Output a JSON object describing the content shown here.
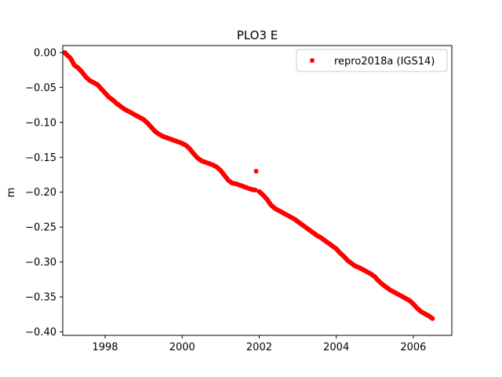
{
  "chart_data": {
    "type": "scatter",
    "title": "PLO3 E",
    "xlabel": "",
    "ylabel": "m",
    "xlim": [
      1996.9,
      2007.0
    ],
    "ylim": [
      -0.405,
      0.01
    ],
    "x_ticks": [
      1998,
      2000,
      2002,
      2004,
      2006
    ],
    "x_tick_labels": [
      "1998",
      "2000",
      "2002",
      "2004",
      "2006"
    ],
    "y_ticks": [
      0.0,
      -0.05,
      -0.1,
      -0.15,
      -0.2,
      -0.25,
      -0.3,
      -0.35,
      -0.4
    ],
    "y_tick_labels": [
      "0.00",
      "−0.05",
      "−0.10",
      "−0.15",
      "−0.20",
      "−0.25",
      "−0.30",
      "−0.35",
      "−0.40"
    ],
    "grid": false,
    "legend_position": "top-right",
    "series": [
      {
        "name": "repro2018a (IGS14)",
        "color": "#ff0000",
        "marker": "dot",
        "x": [
          1996.95,
          1997.0,
          1997.1,
          1997.2,
          1997.3,
          1997.4,
          1997.5,
          1997.6,
          1997.7,
          1997.8,
          1997.9,
          1998.0,
          1998.1,
          1998.2,
          1998.3,
          1998.4,
          1998.5,
          1998.6,
          1998.7,
          1998.8,
          1998.9,
          1999.0,
          1999.1,
          1999.2,
          1999.3,
          1999.4,
          1999.5,
          1999.6,
          1999.7,
          1999.8,
          1999.9,
          2000.0,
          2000.1,
          2000.2,
          2000.3,
          2000.4,
          2000.5,
          2000.6,
          2000.7,
          2000.8,
          2000.9,
          2001.0,
          2001.1,
          2001.2,
          2001.3,
          2001.4,
          2001.5,
          2001.6,
          2001.7,
          2001.8,
          2001.9,
          2001.92,
          2002.0,
          2002.1,
          2002.2,
          2002.3,
          2002.4,
          2002.5,
          2002.6,
          2002.7,
          2002.8,
          2002.9,
          2003.0,
          2003.1,
          2003.2,
          2003.3,
          2003.4,
          2003.5,
          2003.6,
          2003.7,
          2003.8,
          2003.9,
          2004.0,
          2004.1,
          2004.2,
          2004.3,
          2004.4,
          2004.5,
          2004.6,
          2004.7,
          2004.8,
          2004.9,
          2005.0,
          2005.1,
          2005.2,
          2005.3,
          2005.4,
          2005.5,
          2005.6,
          2005.7,
          2005.8,
          2005.9,
          2006.0,
          2006.1,
          2006.2,
          2006.3,
          2006.4,
          2006.5
        ],
        "y": [
          0.0,
          -0.003,
          -0.008,
          -0.018,
          -0.022,
          -0.028,
          -0.035,
          -0.04,
          -0.043,
          -0.046,
          -0.052,
          -0.058,
          -0.064,
          -0.068,
          -0.073,
          -0.077,
          -0.081,
          -0.084,
          -0.087,
          -0.09,
          -0.093,
          -0.096,
          -0.101,
          -0.107,
          -0.113,
          -0.117,
          -0.12,
          -0.122,
          -0.124,
          -0.126,
          -0.128,
          -0.13,
          -0.133,
          -0.138,
          -0.145,
          -0.151,
          -0.155,
          -0.157,
          -0.159,
          -0.161,
          -0.164,
          -0.169,
          -0.176,
          -0.183,
          -0.187,
          -0.188,
          -0.19,
          -0.192,
          -0.194,
          -0.196,
          -0.197,
          -0.17,
          -0.199,
          -0.204,
          -0.21,
          -0.218,
          -0.223,
          -0.226,
          -0.229,
          -0.232,
          -0.235,
          -0.238,
          -0.242,
          -0.246,
          -0.25,
          -0.254,
          -0.258,
          -0.262,
          -0.265,
          -0.269,
          -0.273,
          -0.277,
          -0.281,
          -0.287,
          -0.292,
          -0.298,
          -0.302,
          -0.306,
          -0.308,
          -0.311,
          -0.314,
          -0.317,
          -0.321,
          -0.327,
          -0.332,
          -0.336,
          -0.34,
          -0.343,
          -0.346,
          -0.349,
          -0.352,
          -0.355,
          -0.36,
          -0.366,
          -0.371,
          -0.374,
          -0.377,
          -0.381
        ]
      }
    ]
  }
}
